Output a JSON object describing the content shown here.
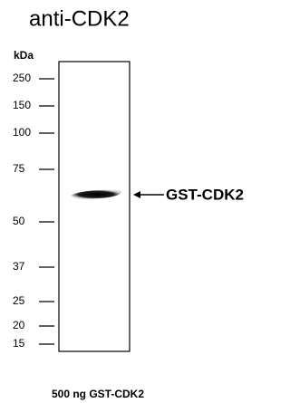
{
  "title": "anti-CDK2",
  "unit_label": "kDa",
  "markers": [
    "250",
    "150",
    "100",
    "75",
    "50",
    "37",
    "25",
    "20",
    "15"
  ],
  "band_label": "GST-CDK2",
  "lane_label": "500 ng GST-CDK2"
}
